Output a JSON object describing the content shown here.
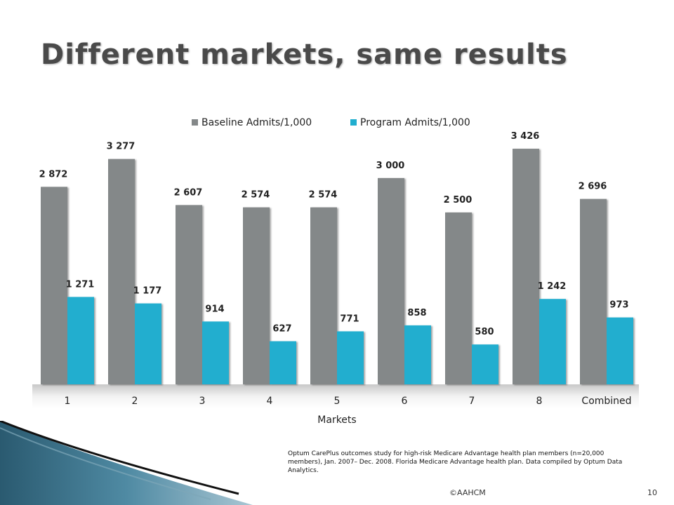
{
  "slide": {
    "title": "Different markets, same results",
    "footnote": "Optum CarePlus outcomes study for high-risk Medicare Advantage health plan members (n=20,000 members), Jan. 2007– Dec. 2008. Florida Medicare Advantage health plan. Data compiled by Optum Data Analytics.",
    "copyright": "©AAHCM",
    "page_number": "10"
  },
  "chart_data": {
    "type": "bar",
    "title": "",
    "xlabel": "Markets",
    "ylabel": "",
    "categories": [
      "1",
      "2",
      "3",
      "4",
      "5",
      "6",
      "7",
      "8",
      "Combined"
    ],
    "series": [
      {
        "name": "Baseline Admits/1,000",
        "color": "#848889",
        "values": [
          2872,
          3277,
          2607,
          2574,
          2574,
          3000,
          2500,
          3426,
          2696
        ],
        "labels": [
          "2 872",
          "3 277",
          "2 607",
          "2 574",
          "2 574",
          "3 000",
          "2 500",
          "3 426",
          "2 696"
        ]
      },
      {
        "name": "Program Admits/1,000",
        "color": "#20AECF",
        "values": [
          1271,
          1177,
          914,
          627,
          771,
          858,
          580,
          1242,
          973
        ],
        "labels": [
          "1 271",
          "1 177",
          "914",
          "627",
          "771",
          "858",
          "580",
          "1 242",
          "973"
        ]
      }
    ],
    "ylim": [
      0,
      3600
    ],
    "grid": false,
    "legend_position": "top-center"
  }
}
